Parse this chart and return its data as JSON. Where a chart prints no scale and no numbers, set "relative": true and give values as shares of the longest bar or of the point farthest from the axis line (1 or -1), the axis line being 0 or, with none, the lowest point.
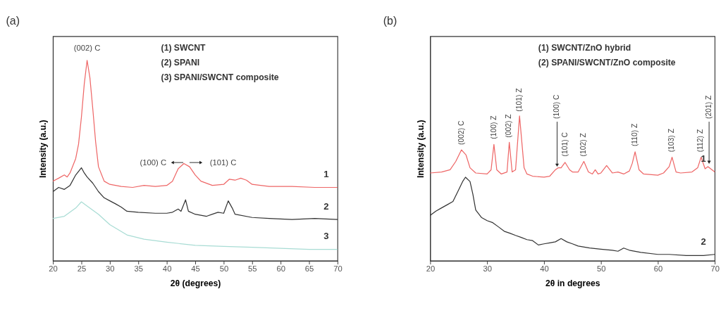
{
  "chart_data": [
    {
      "type": "line",
      "title": "(a)",
      "xlabel": "2θ (degrees)",
      "ylabel": "Intensity (a.u.)",
      "relative": true,
      "tick_labels": "x",
      "grid": false,
      "line_style": "solid",
      "xlim": [
        20,
        70
      ],
      "xticks": [
        20,
        25,
        30,
        35,
        40,
        45,
        50,
        55,
        60,
        65,
        70
      ],
      "series": [
        {
          "name": "1",
          "color": "#ee6666",
          "x": [
            20,
            21,
            22,
            22.5,
            23,
            24,
            24.5,
            25,
            25.5,
            26,
            26.5,
            27,
            27.5,
            28,
            29,
            30,
            32,
            34,
            36,
            38,
            40,
            41,
            42,
            43,
            44,
            45,
            46,
            48,
            50,
            51,
            52,
            53,
            54,
            55,
            58,
            62,
            66,
            70
          ],
          "values": [
            0.397,
            0.412,
            0.428,
            0.418,
            0.438,
            0.51,
            0.582,
            0.716,
            0.881,
            1.0,
            0.912,
            0.758,
            0.593,
            0.469,
            0.397,
            0.381,
            0.371,
            0.366,
            0.376,
            0.371,
            0.376,
            0.397,
            0.459,
            0.485,
            0.469,
            0.428,
            0.397,
            0.376,
            0.381,
            0.407,
            0.402,
            0.412,
            0.402,
            0.381,
            0.371,
            0.371,
            0.366,
            0.366
          ]
        },
        {
          "name": "2",
          "color": "#333333",
          "x": [
            20,
            21,
            22,
            23,
            24,
            25,
            25.5,
            26,
            27,
            28,
            29,
            30,
            31,
            32,
            33,
            35,
            38,
            40,
            41,
            42,
            42.5,
            43.3,
            43.8,
            45,
            47,
            48,
            49,
            50,
            50.8,
            51.5,
            52,
            55,
            58,
            62,
            66,
            70
          ],
          "values": [
            0.345,
            0.366,
            0.356,
            0.376,
            0.428,
            0.464,
            0.438,
            0.418,
            0.387,
            0.345,
            0.314,
            0.299,
            0.284,
            0.268,
            0.247,
            0.242,
            0.237,
            0.237,
            0.242,
            0.258,
            0.247,
            0.304,
            0.247,
            0.232,
            0.222,
            0.232,
            0.242,
            0.237,
            0.299,
            0.263,
            0.232,
            0.216,
            0.211,
            0.206,
            0.211,
            0.206
          ]
        },
        {
          "name": "3",
          "color": "#a8dcd4",
          "x": [
            20,
            22,
            24,
            25,
            26,
            28,
            30,
            33,
            36,
            40,
            45,
            50,
            55,
            60,
            65,
            70
          ],
          "values": [
            0.211,
            0.222,
            0.263,
            0.294,
            0.273,
            0.232,
            0.18,
            0.129,
            0.108,
            0.093,
            0.077,
            0.072,
            0.067,
            0.062,
            0.057,
            0.057
          ]
        }
      ],
      "annotations": [
        "(1) SWCNT",
        "(2) SPANI",
        "(3) SPANI/SWCNT composite",
        "(002) C",
        "(100) C",
        "(101) C"
      ]
    },
    {
      "type": "line",
      "title": "(b)",
      "xlabel": "2θ in degrees",
      "ylabel": "Intensity (a.u.)",
      "relative": true,
      "tick_labels": "x",
      "grid": false,
      "line_style": "solid",
      "xlim": [
        20,
        70
      ],
      "xticks": [
        20,
        30,
        40,
        50,
        60,
        70
      ],
      "series": [
        {
          "name": "1",
          "color": "#ee6666",
          "x": [
            20,
            22,
            23.5,
            24.5,
            25.5,
            26.3,
            27,
            28,
            30,
            30.7,
            31.2,
            31.7,
            32.5,
            33.5,
            33.9,
            34.4,
            35,
            35.7,
            36.5,
            37,
            38,
            40,
            41,
            42,
            42.5,
            43,
            43.7,
            44.5,
            45,
            46,
            47,
            47.8,
            48.5,
            49,
            49.5,
            50,
            51,
            52,
            53,
            54,
            55,
            55.5,
            56,
            56.7,
            57.5,
            60,
            61,
            62,
            62.5,
            63.2,
            64,
            66,
            67,
            67.6,
            68.3,
            68.8,
            70
          ],
          "values": [
            0.606,
            0.613,
            0.628,
            0.686,
            0.766,
            0.73,
            0.642,
            0.606,
            0.599,
            0.628,
            0.803,
            0.628,
            0.599,
            0.613,
            0.818,
            0.613,
            0.628,
            1.0,
            0.642,
            0.599,
            0.584,
            0.577,
            0.584,
            0.628,
            0.642,
            0.642,
            0.679,
            0.628,
            0.613,
            0.613,
            0.686,
            0.613,
            0.599,
            0.628,
            0.599,
            0.606,
            0.657,
            0.606,
            0.613,
            0.599,
            0.62,
            0.672,
            0.752,
            0.628,
            0.599,
            0.591,
            0.606,
            0.65,
            0.715,
            0.613,
            0.606,
            0.613,
            0.642,
            0.715,
            0.635,
            0.65,
            0.613
          ]
        },
        {
          "name": "2",
          "color": "#333333",
          "x": [
            20,
            21,
            22,
            23,
            24,
            25,
            25.7,
            26.2,
            27,
            27.5,
            28,
            29,
            30,
            31,
            32,
            33,
            34,
            35,
            36,
            37,
            38,
            39,
            40,
            41,
            42,
            43,
            44,
            45,
            46,
            48,
            50,
            52,
            53,
            54,
            55,
            57,
            60,
            62,
            65,
            68,
            70
          ],
          "values": [
            0.314,
            0.343,
            0.365,
            0.387,
            0.409,
            0.489,
            0.547,
            0.577,
            0.547,
            0.46,
            0.35,
            0.299,
            0.277,
            0.263,
            0.234,
            0.204,
            0.19,
            0.175,
            0.161,
            0.146,
            0.139,
            0.109,
            0.117,
            0.124,
            0.131,
            0.153,
            0.131,
            0.117,
            0.102,
            0.088,
            0.08,
            0.073,
            0.066,
            0.088,
            0.073,
            0.058,
            0.044,
            0.044,
            0.036,
            0.036,
            0.044
          ]
        }
      ],
      "annotations": [
        "(1) SWCNT/ZnO hybrid",
        "(2) SPANI/SWCNT/ZnO composite",
        "(002) C",
        "(100) Z",
        "(002) Z",
        "(101) Z",
        "(100) C",
        "(101) C",
        "(102) Z",
        "(110) Z",
        "(103) Z",
        "(112) Z",
        "(201) Z"
      ]
    }
  ]
}
